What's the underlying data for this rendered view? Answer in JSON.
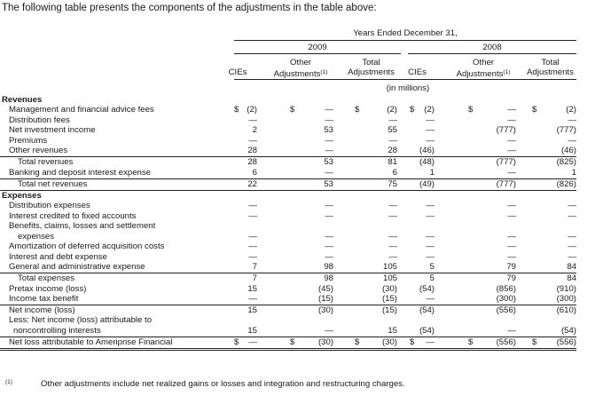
{
  "intro": "The following table presents the components of the adjustments in the table above:",
  "header": {
    "span_label": "Years Ended December 31,",
    "years": [
      "2009",
      "2008"
    ],
    "col_labels": [
      [
        "CIEs"
      ],
      [
        "Other",
        "Adjustments(1)"
      ],
      [
        "Total",
        "Adjustments"
      ],
      [
        "CIEs"
      ],
      [
        "Other",
        "Adjustments(1)"
      ],
      [
        "Total",
        "Adjustments"
      ]
    ],
    "units": "(in millions)"
  },
  "rows": [
    {
      "label": "Revenues",
      "bold": true
    },
    {
      "label": "Management and financial advice fees",
      "values": [
        "(2)",
        "—",
        "(2)",
        "(2)",
        "—",
        "(2)"
      ],
      "dollar": true
    },
    {
      "label": "Distribution fees",
      "values": [
        "—",
        "—",
        "—",
        "—",
        "—",
        "—"
      ]
    },
    {
      "label": "Net investment income",
      "values": [
        "2",
        "53",
        "55",
        "—",
        "(777)",
        "(777)"
      ]
    },
    {
      "label": "Premiums",
      "values": [
        "—",
        "—",
        "—",
        "—",
        "—",
        "—"
      ]
    },
    {
      "label": "Other revenues",
      "values": [
        "28",
        "—",
        "28",
        "(46)",
        "—",
        "(46)"
      ],
      "rule": true
    },
    {
      "label": "Total revenues",
      "indent": 2,
      "values": [
        "28",
        "53",
        "81",
        "(48)",
        "(777)",
        "(825)"
      ]
    },
    {
      "label": "Banking and deposit interest expense",
      "values": [
        "6",
        "—",
        "6",
        "1",
        "—",
        "1"
      ],
      "rule": true
    },
    {
      "label": "Total net revenues",
      "indent": 2,
      "values": [
        "22",
        "53",
        "75",
        "(49)",
        "(777)",
        "(826)"
      ],
      "rule": true
    },
    {
      "label": "Expenses",
      "bold": true
    },
    {
      "label": "Distribution expenses",
      "values": [
        "—",
        "—",
        "—",
        "—",
        "—",
        "—"
      ]
    },
    {
      "label": "Interest credited to fixed accounts",
      "values": [
        "—",
        "—",
        "—",
        "—",
        "—",
        "—"
      ]
    },
    {
      "label": "Benefits, claims, losses and settlement"
    },
    {
      "label": "expenses",
      "indent": 2,
      "values": [
        "—",
        "—",
        "—",
        "—",
        "—",
        "—"
      ]
    },
    {
      "label": "Amortization of deferred acquisition costs",
      "values": [
        "—",
        "—",
        "—",
        "—",
        "—",
        "—"
      ]
    },
    {
      "label": "Interest and debt expense",
      "values": [
        "—",
        "—",
        "—",
        "—",
        "—",
        "—"
      ]
    },
    {
      "label": "General and administrative expense",
      "values": [
        "7",
        "98",
        "105",
        "5",
        "79",
        "84"
      ],
      "rule": true
    },
    {
      "label": "Total expenses",
      "indent": 2,
      "values": [
        "7",
        "98",
        "105",
        "5",
        "79",
        "84"
      ]
    },
    {
      "label": "Pretax income (loss)",
      "values": [
        "15",
        "(45)",
        "(30)",
        "(54)",
        "(856)",
        "(910)"
      ]
    },
    {
      "label": "Income tax benefit",
      "values": [
        "—",
        "(15)",
        "(15)",
        "—",
        "(300)",
        "(300)"
      ],
      "rule": true
    },
    {
      "label": "Net income (loss)",
      "values": [
        "15",
        "(30)",
        "(15)",
        "(54)",
        "(556)",
        "(610)"
      ]
    },
    {
      "label": "Less: Net income (loss) attributable to"
    },
    {
      "label": "noncontrolling interests",
      "indent": 1,
      "values": [
        "15",
        "—",
        "15",
        "(54)",
        "—",
        "(54)"
      ],
      "rule": true
    },
    {
      "label": "Net loss attributable to Ameriprise Financial",
      "values": [
        "—",
        "(30)",
        "(30)",
        "—",
        "(556)",
        "(556)"
      ],
      "dollar": true,
      "rule": "double"
    }
  ],
  "dollar_sign": "$",
  "footnote": {
    "marker": "(1)",
    "text": "Other adjustments include net realized gains or losses and integration and restructuring charges."
  }
}
